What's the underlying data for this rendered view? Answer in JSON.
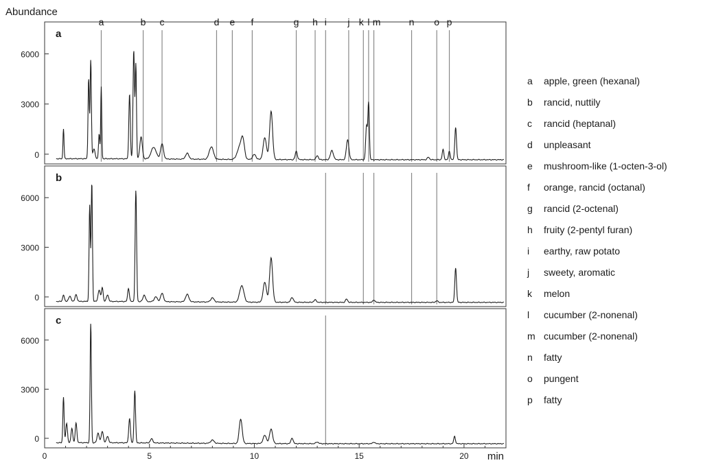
{
  "chart_data": {
    "type": "line",
    "ylabel": "Abundance",
    "xlabel": "min",
    "xlim": [
      0,
      22
    ],
    "xticks": [
      0,
      5,
      10,
      15,
      20
    ],
    "ylim": [
      -500,
      7500
    ],
    "yticks": [
      0,
      3000,
      6000
    ],
    "grid": false,
    "legend_position": "right",
    "line_color": "#1a1a1a",
    "marker_color": "#888888",
    "odor_markers": [
      {
        "key": "a",
        "time": 2.7,
        "description": "apple, green (hexanal)"
      },
      {
        "key": "b",
        "time": 4.7,
        "description": "rancid, nuttily"
      },
      {
        "key": "c",
        "time": 5.6,
        "description": "rancid (heptanal)"
      },
      {
        "key": "d",
        "time": 8.2,
        "description": "unpleasant"
      },
      {
        "key": "e",
        "time": 8.95,
        "description": "mushroom-like (1-octen-3-ol)"
      },
      {
        "key": "f",
        "time": 9.9,
        "description": "orange, rancid (octanal)"
      },
      {
        "key": "g",
        "time": 12.0,
        "description": "rancid (2-octenal)"
      },
      {
        "key": "h",
        "time": 12.9,
        "description": "fruity (2-pentyl furan)"
      },
      {
        "key": "i",
        "time": 13.4,
        "description": "earthy, raw potato"
      },
      {
        "key": "j",
        "time": 14.5,
        "description": "sweety, aromatic"
      },
      {
        "key": "k",
        "time": 15.2,
        "description": "melon"
      },
      {
        "key": "l",
        "time": 15.45,
        "description": "cucumber (2-nonenal)"
      },
      {
        "key": "m",
        "time": 15.7,
        "description": "cucumber (2-nonenal)"
      },
      {
        "key": "n",
        "time": 17.5,
        "description": "fatty"
      },
      {
        "key": "o",
        "time": 18.7,
        "description": "pungent"
      },
      {
        "key": "p",
        "time": 19.3,
        "description": "fatty"
      }
    ],
    "panels": [
      {
        "label": "a",
        "marker_keys": [
          "a",
          "b",
          "c",
          "d",
          "e",
          "f",
          "g",
          "h",
          "i",
          "j",
          "k",
          "l",
          "m",
          "n",
          "o",
          "p"
        ],
        "peaks": [
          [
            0.9,
            1800,
            0.025
          ],
          [
            2.1,
            4800,
            0.03
          ],
          [
            2.2,
            5900,
            0.03
          ],
          [
            2.35,
            600,
            0.05
          ],
          [
            2.6,
            1500,
            0.03
          ],
          [
            2.7,
            4300,
            0.025
          ],
          [
            4.05,
            3900,
            0.035
          ],
          [
            4.25,
            6500,
            0.035
          ],
          [
            4.35,
            5600,
            0.03
          ],
          [
            4.6,
            1300,
            0.06
          ],
          [
            5.2,
            700,
            0.12
          ],
          [
            5.6,
            900,
            0.07
          ],
          [
            6.8,
            350,
            0.08
          ],
          [
            7.95,
            750,
            0.1
          ],
          [
            9.3,
            700,
            0.12
          ],
          [
            9.45,
            1050,
            0.08
          ],
          [
            10.0,
            300,
            0.08
          ],
          [
            10.5,
            1300,
            0.08
          ],
          [
            10.8,
            2900,
            0.07
          ],
          [
            12.0,
            500,
            0.05
          ],
          [
            13.0,
            250,
            0.05
          ],
          [
            13.7,
            550,
            0.07
          ],
          [
            14.45,
            1200,
            0.06
          ],
          [
            15.35,
            2000,
            0.04
          ],
          [
            15.45,
            3400,
            0.035
          ],
          [
            18.3,
            150,
            0.05
          ],
          [
            19.0,
            600,
            0.04
          ],
          [
            19.3,
            500,
            0.04
          ],
          [
            19.6,
            1950,
            0.04
          ]
        ]
      },
      {
        "label": "b",
        "marker_keys": [
          "i",
          "k",
          "m",
          "n",
          "o"
        ],
        "peaks": [
          [
            0.9,
            400,
            0.04
          ],
          [
            1.2,
            300,
            0.06
          ],
          [
            1.5,
            400,
            0.05
          ],
          [
            2.15,
            5800,
            0.03
          ],
          [
            2.25,
            7200,
            0.03
          ],
          [
            2.6,
            700,
            0.05
          ],
          [
            2.75,
            850,
            0.04
          ],
          [
            3.0,
            400,
            0.05
          ],
          [
            4.0,
            800,
            0.04
          ],
          [
            4.35,
            6700,
            0.035
          ],
          [
            4.75,
            400,
            0.06
          ],
          [
            5.3,
            300,
            0.07
          ],
          [
            5.6,
            500,
            0.07
          ],
          [
            6.8,
            450,
            0.08
          ],
          [
            8.0,
            250,
            0.08
          ],
          [
            9.4,
            1000,
            0.1
          ],
          [
            10.5,
            1200,
            0.08
          ],
          [
            10.8,
            2700,
            0.07
          ],
          [
            11.8,
            300,
            0.06
          ],
          [
            12.9,
            150,
            0.06
          ],
          [
            14.4,
            200,
            0.05
          ],
          [
            15.7,
            150,
            0.05
          ],
          [
            18.7,
            100,
            0.05
          ],
          [
            19.6,
            2100,
            0.04
          ]
        ]
      },
      {
        "label": "c",
        "marker_keys": [
          "i"
        ],
        "peaks": [
          [
            0.9,
            2800,
            0.03
          ],
          [
            1.05,
            1200,
            0.04
          ],
          [
            1.3,
            900,
            0.04
          ],
          [
            1.5,
            1200,
            0.04
          ],
          [
            2.2,
            7300,
            0.03
          ],
          [
            2.55,
            600,
            0.05
          ],
          [
            2.75,
            700,
            0.05
          ],
          [
            3.0,
            400,
            0.05
          ],
          [
            4.05,
            1500,
            0.04
          ],
          [
            4.3,
            3200,
            0.035
          ],
          [
            5.1,
            250,
            0.06
          ],
          [
            8.0,
            200,
            0.08
          ],
          [
            9.35,
            1500,
            0.07
          ],
          [
            10.5,
            500,
            0.08
          ],
          [
            10.8,
            900,
            0.07
          ],
          [
            11.8,
            350,
            0.05
          ],
          [
            13.0,
            100,
            0.06
          ],
          [
            15.7,
            100,
            0.05
          ],
          [
            19.55,
            450,
            0.04
          ]
        ]
      }
    ]
  }
}
